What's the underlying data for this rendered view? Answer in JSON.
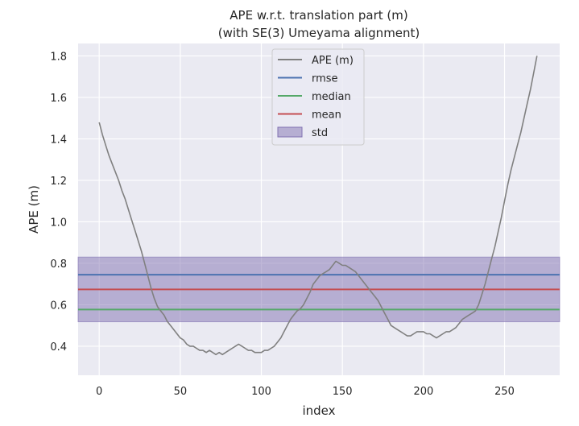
{
  "chart_data": {
    "type": "line",
    "title": "APE w.r.t. translation part (m)",
    "subtitle": "(with SE(3) Umeyama alignment)",
    "xlabel": "index",
    "ylabel": "APE (m)",
    "xlim": [
      -13,
      284
    ],
    "ylim": [
      0.26,
      1.86
    ],
    "xticks": [
      0,
      50,
      100,
      150,
      200,
      250
    ],
    "yticks": [
      0.4,
      0.6,
      0.8,
      1.0,
      1.2,
      1.4,
      1.6,
      1.8
    ],
    "xtick_labels": [
      "0",
      "50",
      "100",
      "150",
      "200",
      "250"
    ],
    "ytick_labels": [
      "0.4",
      "0.6",
      "0.8",
      "1.0",
      "1.2",
      "1.4",
      "1.6",
      "1.8"
    ],
    "grid": true,
    "legend_position": "top-center",
    "series": [
      {
        "name": "APE (m)",
        "color": "#808080",
        "x": [
          0,
          2,
          4,
          6,
          8,
          10,
          12,
          14,
          16,
          18,
          20,
          22,
          24,
          26,
          28,
          30,
          32,
          34,
          36,
          38,
          40,
          42,
          44,
          46,
          48,
          50,
          52,
          54,
          56,
          58,
          60,
          62,
          64,
          66,
          68,
          70,
          72,
          74,
          76,
          78,
          80,
          82,
          84,
          86,
          88,
          90,
          92,
          94,
          96,
          98,
          100,
          102,
          104,
          106,
          108,
          110,
          112,
          114,
          116,
          118,
          120,
          122,
          124,
          126,
          128,
          130,
          132,
          134,
          136,
          138,
          140,
          142,
          144,
          146,
          148,
          150,
          152,
          154,
          156,
          158,
          160,
          162,
          164,
          166,
          168,
          170,
          172,
          174,
          176,
          178,
          180,
          182,
          184,
          186,
          188,
          190,
          192,
          194,
          196,
          198,
          200,
          202,
          204,
          206,
          208,
          210,
          212,
          214,
          216,
          218,
          220,
          222,
          224,
          226,
          228,
          230,
          232,
          234,
          236,
          238,
          240,
          242,
          244,
          246,
          248,
          250,
          252,
          254,
          256,
          258,
          260,
          262,
          264,
          266,
          268,
          270
        ],
        "values": [
          1.48,
          1.42,
          1.37,
          1.32,
          1.28,
          1.24,
          1.2,
          1.15,
          1.11,
          1.06,
          1.01,
          0.96,
          0.91,
          0.86,
          0.8,
          0.74,
          0.68,
          0.63,
          0.59,
          0.57,
          0.55,
          0.52,
          0.5,
          0.48,
          0.46,
          0.44,
          0.43,
          0.41,
          0.4,
          0.4,
          0.39,
          0.38,
          0.38,
          0.37,
          0.38,
          0.37,
          0.36,
          0.37,
          0.36,
          0.37,
          0.38,
          0.39,
          0.4,
          0.41,
          0.4,
          0.39,
          0.38,
          0.38,
          0.37,
          0.37,
          0.37,
          0.38,
          0.38,
          0.39,
          0.4,
          0.42,
          0.44,
          0.47,
          0.5,
          0.53,
          0.55,
          0.57,
          0.58,
          0.6,
          0.63,
          0.66,
          0.7,
          0.72,
          0.74,
          0.75,
          0.76,
          0.77,
          0.79,
          0.81,
          0.8,
          0.79,
          0.79,
          0.78,
          0.77,
          0.76,
          0.74,
          0.72,
          0.7,
          0.68,
          0.66,
          0.64,
          0.62,
          0.59,
          0.56,
          0.53,
          0.5,
          0.49,
          0.48,
          0.47,
          0.46,
          0.45,
          0.45,
          0.46,
          0.47,
          0.47,
          0.47,
          0.46,
          0.46,
          0.45,
          0.44,
          0.45,
          0.46,
          0.47,
          0.47,
          0.48,
          0.49,
          0.51,
          0.53,
          0.54,
          0.55,
          0.56,
          0.57,
          0.6,
          0.65,
          0.7,
          0.76,
          0.82,
          0.88,
          0.95,
          1.02,
          1.1,
          1.18,
          1.25,
          1.31,
          1.37,
          1.43,
          1.5,
          1.57,
          1.64,
          1.72,
          1.8
        ]
      },
      {
        "name": "rmse",
        "color": "#4c72b0",
        "value": 0.745
      },
      {
        "name": "median",
        "color": "#55a868",
        "value": 0.577
      },
      {
        "name": "mean",
        "color": "#c44e52",
        "value": 0.674
      },
      {
        "name": "std",
        "color": "#8172b2",
        "band": [
          0.518,
          0.83
        ]
      }
    ]
  }
}
